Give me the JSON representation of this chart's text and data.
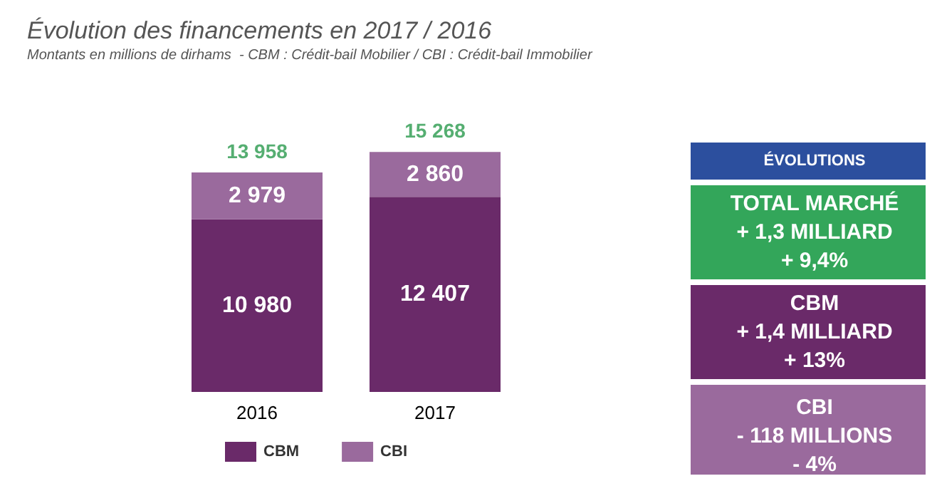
{
  "chart_data": {
    "type": "bar",
    "title": "Évolution des financements en 2017 / 2016",
    "subtitle": "Montants en millions de dirhams  - CBM : Crédit-bail Mobilier / CBI : Crédit-bail Immobilier",
    "categories": [
      "2016",
      "2017"
    ],
    "stacked": true,
    "series": [
      {
        "name": "CBM",
        "color": "#6a2a69",
        "values": [
          10980,
          12407
        ],
        "value_labels": [
          "10 980",
          "12 407"
        ]
      },
      {
        "name": "CBI",
        "color": "#9a6a9d",
        "values": [
          2979,
          2860
        ],
        "value_labels": [
          "2 979",
          "2 860"
        ]
      }
    ],
    "totals": [
      "13 958",
      "15 268"
    ],
    "legend": "bottom",
    "annotations": [
      "ÉVOLUTIONS",
      "TOTAL MARCHÉ\n+ 1,3 MILLIARD\n+ 9,4%",
      "CBM\n+ 1,4 MILLIARD\n+ 13%",
      "CBI\n- 118 MILLIONS\n- 4%"
    ]
  }
}
